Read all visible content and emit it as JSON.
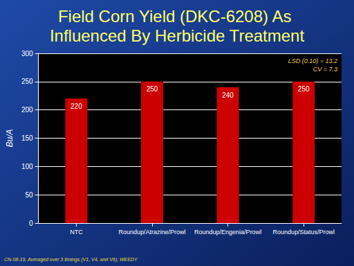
{
  "chart_data": {
    "type": "bar",
    "title": "Field Corn Yield (DKC-6208) As Influenced By Herbicide Treatment",
    "ylabel": "Bu/A",
    "categories": [
      "NTC",
      "Roundup/Atrazine/Prowl",
      "Roundup/Engenia/Prowl",
      "Roundup/Status/Prowl"
    ],
    "values": [
      220,
      250,
      240,
      250
    ],
    "color": "#cc0000",
    "ylim": [
      0,
      300
    ],
    "yticks": [
      0,
      50,
      100,
      150,
      200,
      250,
      300
    ],
    "grid": true,
    "data_labels": true,
    "annotations": [
      "LSD (0.10) = 13.2",
      "CV = 7.3",
      "CN-08-19, Averaged over 3 timings (V1, V4, and V6); WEEDY"
    ]
  }
}
